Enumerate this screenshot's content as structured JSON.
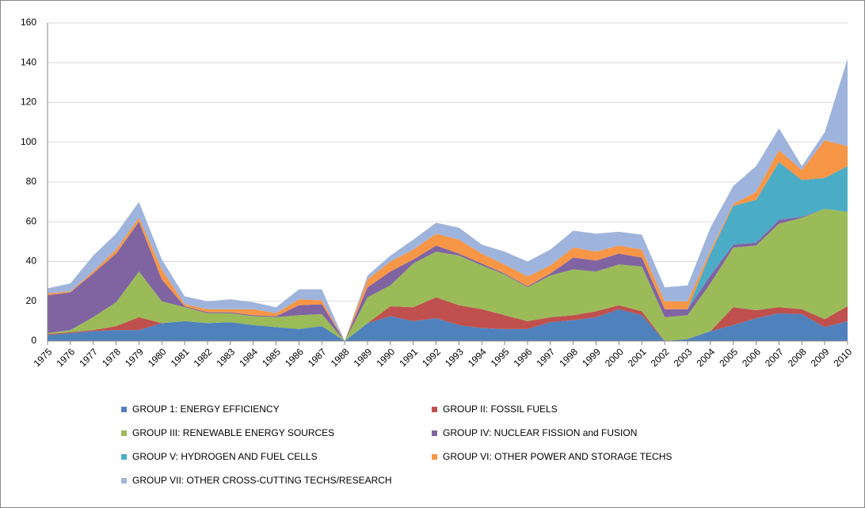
{
  "chart_data": {
    "type": "stacked_area",
    "categories": [
      "1975",
      "1976",
      "1977",
      "1978",
      "1979",
      "1980",
      "1981",
      "1982",
      "1983",
      "1984",
      "1985",
      "1986",
      "1987",
      "1988",
      "1989",
      "1990",
      "1991",
      "1992",
      "1993",
      "1994",
      "1995",
      "1996",
      "1997",
      "1998",
      "1999",
      "2000",
      "2001",
      "2002",
      "2003",
      "2004",
      "2005",
      "2006",
      "2007",
      "2008",
      "2009",
      "2010"
    ],
    "series": [
      {
        "name": "GROUP 1: ENERGY EFFICIENCY",
        "color": "#4f81bd",
        "values": [
          3,
          4,
          5,
          5.5,
          5.5,
          9,
          10,
          9,
          9.5,
          8,
          7,
          6,
          7.5,
          0,
          9,
          12.5,
          10,
          11.5,
          8,
          6.5,
          6,
          6,
          9.5,
          10.5,
          12,
          16,
          13,
          0,
          1,
          5,
          8,
          11.5,
          14,
          13.5,
          7,
          10
        ]
      },
      {
        "name": "GROUP II: FOSSIL FUELS",
        "color": "#c0504d",
        "values": [
          0.5,
          0.5,
          0.5,
          2,
          6.5,
          0,
          0,
          0,
          0,
          0,
          0,
          0,
          0,
          0,
          0,
          5,
          7,
          10.5,
          10,
          9.5,
          7,
          4,
          2.5,
          2.5,
          3,
          2,
          2,
          0,
          0,
          0,
          9,
          4,
          3,
          2.5,
          4,
          7.5
        ]
      },
      {
        "name": "GROUP III: RENEWABLE ENERGY SOURCES",
        "color": "#9bbb59",
        "values": [
          0.5,
          1,
          6.5,
          12,
          23,
          11,
          7,
          5,
          4.5,
          4.5,
          5,
          7,
          6,
          0,
          13,
          10.5,
          22,
          23,
          25,
          22,
          20.5,
          17,
          21,
          23,
          20,
          20.5,
          22.5,
          12,
          12,
          24,
          30,
          32.5,
          42,
          46,
          55.5,
          47.5
        ]
      },
      {
        "name": "GROUP IV: NUCLEAR FISSION and FUSION",
        "color": "#8064a2",
        "values": [
          19,
          19,
          22,
          24.5,
          25,
          11,
          0.5,
          0.5,
          0.5,
          0.5,
          0.5,
          5,
          5,
          0,
          5,
          7,
          2,
          3,
          1,
          1,
          0.5,
          0.5,
          1,
          6,
          5.5,
          5.5,
          4.5,
          4,
          3,
          4,
          1.5,
          1.5,
          2,
          0.5,
          0,
          0
        ]
      },
      {
        "name": "GROUP V: HYDROGEN AND FUEL CELLS",
        "color": "#4bacc6",
        "values": [
          0,
          0,
          0,
          0,
          0,
          0,
          0,
          0,
          0,
          0,
          0,
          0,
          0,
          0,
          0,
          0,
          0,
          0,
          0,
          0,
          0,
          0,
          0,
          0,
          0,
          0,
          0,
          0,
          0,
          11,
          19.5,
          21.5,
          29,
          18.5,
          15.5,
          23
        ]
      },
      {
        "name": "GROUP VI: OTHER POWER AND STORAGE TECHS",
        "color": "#f79646",
        "values": [
          1,
          0.5,
          1,
          2,
          2,
          5,
          1,
          1.5,
          1.5,
          3,
          1.5,
          3,
          2,
          0,
          4,
          5,
          5,
          6,
          7,
          5,
          4.5,
          5,
          4,
          5,
          4.5,
          4,
          4,
          4,
          4,
          1.5,
          1,
          4,
          6,
          5,
          19,
          10
        ]
      },
      {
        "name": "GROUP VII: OTHER CROSS-CUTTING TECHS/RESEARCH",
        "color": "#9fb4dc",
        "values": [
          2.5,
          4,
          8,
          8,
          8,
          5,
          4,
          4,
          5,
          3.5,
          3,
          5,
          5.5,
          0,
          2,
          3,
          5,
          5.5,
          6,
          4.5,
          6.5,
          7.5,
          8,
          8.5,
          9,
          7,
          7.5,
          7,
          8,
          11.5,
          9,
          13,
          11,
          2,
          4,
          44
        ]
      }
    ],
    "ylim": [
      0,
      160
    ],
    "yticks": [
      0,
      20,
      40,
      60,
      80,
      100,
      120,
      140,
      160
    ],
    "grid": true
  }
}
